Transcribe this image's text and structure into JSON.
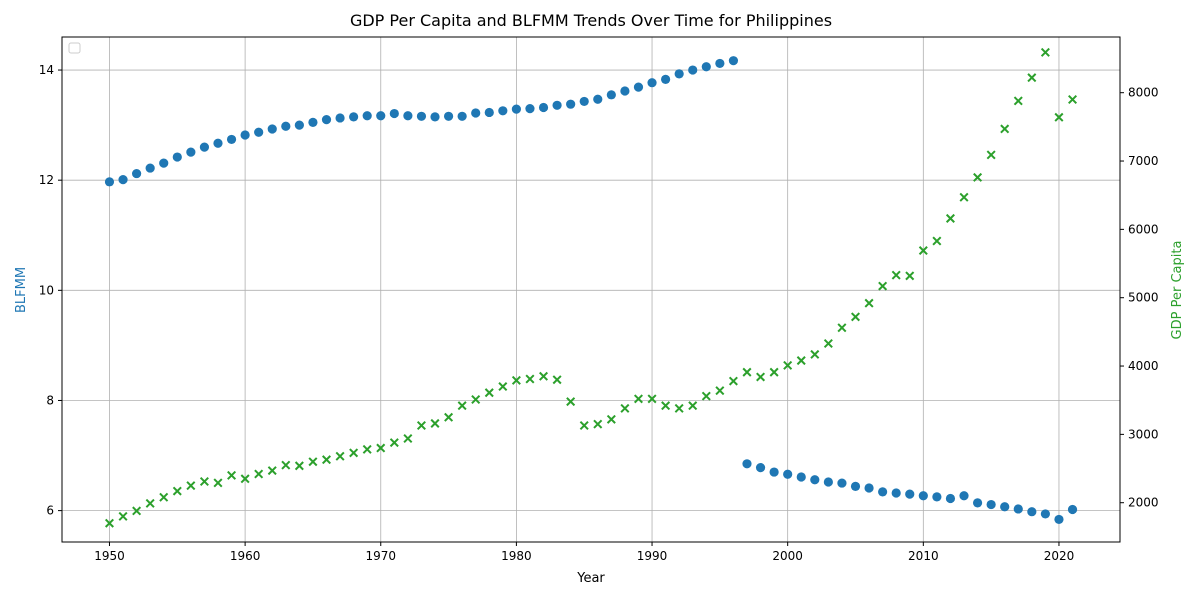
{
  "chart_data": {
    "type": "scatter",
    "title": "GDP Per Capita and BLFMM Trends Over Time for Philippines",
    "xlabel": "Year",
    "ylabel_left": "BLFMM",
    "ylabel_right": "GDP Per Capita",
    "xlim": [
      1946.5,
      2024.5
    ],
    "ylim_left": [
      5.43,
      14.6
    ],
    "ylim_right": [
      1425,
      8815
    ],
    "x_ticks": [
      1950,
      1960,
      1970,
      1980,
      1990,
      2000,
      2010,
      2020
    ],
    "y_ticks_left": [
      6,
      8,
      10,
      12,
      14
    ],
    "y_ticks_right": [
      2000,
      3000,
      4000,
      5000,
      6000,
      7000,
      8000
    ],
    "grid": true,
    "legend": "top-left (empty)",
    "colors": {
      "blfmm": "#1f77b4",
      "gdp": "#2ca02c"
    },
    "series": [
      {
        "name": "BLFMM",
        "axis": "left",
        "marker": "circle",
        "x": [
          1950,
          1951,
          1952,
          1953,
          1954,
          1955,
          1956,
          1957,
          1958,
          1959,
          1960,
          1961,
          1962,
          1963,
          1964,
          1965,
          1966,
          1967,
          1968,
          1969,
          1970,
          1971,
          1972,
          1973,
          1974,
          1975,
          1976,
          1977,
          1978,
          1979,
          1980,
          1981,
          1982,
          1983,
          1984,
          1985,
          1986,
          1987,
          1988,
          1989,
          1990,
          1991,
          1992,
          1993,
          1994,
          1995,
          1996,
          1997,
          1998,
          1999,
          2000,
          2001,
          2002,
          2003,
          2004,
          2005,
          2006,
          2007,
          2008,
          2009,
          2010,
          2011,
          2012,
          2013,
          2014,
          2015,
          2016,
          2017,
          2018,
          2019,
          2020,
          2021
        ],
        "y": [
          11.97,
          12.01,
          12.12,
          12.22,
          12.31,
          12.42,
          12.51,
          12.6,
          12.67,
          12.74,
          12.82,
          12.87,
          12.93,
          12.98,
          13.0,
          13.05,
          13.1,
          13.13,
          13.15,
          13.17,
          13.17,
          13.21,
          13.17,
          13.16,
          13.15,
          13.16,
          13.16,
          13.22,
          13.23,
          13.26,
          13.29,
          13.3,
          13.32,
          13.36,
          13.38,
          13.43,
          13.47,
          13.55,
          13.62,
          13.69,
          13.77,
          13.83,
          13.93,
          14.0,
          14.06,
          14.12,
          14.17,
          6.85,
          6.78,
          6.7,
          6.66,
          6.61,
          6.56,
          6.52,
          6.5,
          6.44,
          6.41,
          6.34,
          6.32,
          6.3,
          6.27,
          6.25,
          6.22,
          6.27,
          6.14,
          6.11,
          6.07,
          6.03,
          5.98,
          5.94,
          5.84,
          6.02
        ]
      },
      {
        "name": "GDP Per Capita",
        "axis": "right",
        "marker": "x",
        "x": [
          1950,
          1951,
          1952,
          1953,
          1954,
          1955,
          1956,
          1957,
          1958,
          1959,
          1960,
          1961,
          1962,
          1963,
          1964,
          1965,
          1966,
          1967,
          1968,
          1969,
          1970,
          1971,
          1972,
          1973,
          1974,
          1975,
          1976,
          1977,
          1978,
          1979,
          1980,
          1981,
          1982,
          1983,
          1984,
          1985,
          1986,
          1987,
          1988,
          1989,
          1990,
          1991,
          1992,
          1993,
          1994,
          1995,
          1996,
          1997,
          1998,
          1999,
          2000,
          2001,
          2002,
          2003,
          2004,
          2005,
          2006,
          2007,
          2008,
          2009,
          2010,
          2011,
          2012,
          2013,
          2014,
          2015,
          2016,
          2017,
          2018,
          2019,
          2020,
          2021
        ],
        "y": [
          1700,
          1800,
          1880,
          1990,
          2080,
          2170,
          2250,
          2310,
          2290,
          2400,
          2350,
          2420,
          2470,
          2550,
          2540,
          2600,
          2630,
          2680,
          2730,
          2780,
          2800,
          2880,
          2940,
          3130,
          3160,
          3250,
          3420,
          3510,
          3610,
          3700,
          3790,
          3810,
          3850,
          3800,
          3480,
          3130,
          3150,
          3220,
          3380,
          3520,
          3520,
          3420,
          3380,
          3420,
          3560,
          3640,
          3780,
          3910,
          3840,
          3910,
          4010,
          4080,
          4170,
          4330,
          4560,
          4720,
          4920,
          5170,
          5330,
          5320,
          5690,
          5830,
          6160,
          6470,
          6760,
          7090,
          7470,
          7880,
          8220,
          8590,
          7640,
          7900
        ]
      }
    ]
  }
}
